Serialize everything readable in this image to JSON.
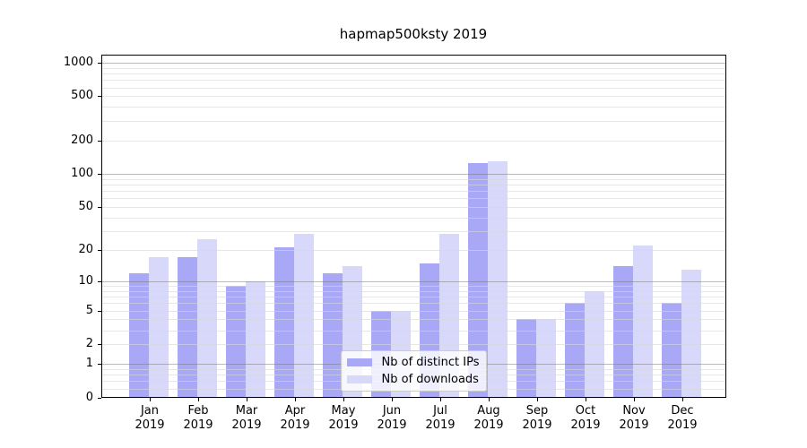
{
  "title": "hapmap500ksty 2019",
  "chart_data": {
    "type": "bar",
    "title": "hapmap500ksty 2019",
    "categories": [
      "Jan 2019",
      "Feb 2019",
      "Mar 2019",
      "Apr 2019",
      "May 2019",
      "Jun 2019",
      "Jul 2019",
      "Aug 2019",
      "Sep 2019",
      "Oct 2019",
      "Nov 2019",
      "Dec 2019"
    ],
    "series": [
      {
        "name": "Nb of distinct IPs",
        "color": "#a8a8f7",
        "values": [
          12,
          17,
          9,
          21,
          12,
          5,
          15,
          125,
          4,
          6,
          14,
          6
        ]
      },
      {
        "name": "Nb of downloads",
        "color": "#d8d8fa",
        "values": [
          17,
          25,
          10,
          28,
          14,
          5,
          28,
          130,
          4,
          8,
          22,
          13
        ]
      }
    ],
    "xlabel": "",
    "ylabel": "",
    "y_ticks": [
      0,
      1,
      2,
      5,
      10,
      20,
      50,
      100,
      200,
      500,
      1000
    ],
    "y_scale": "log-like (log10 of value+1), 0 at baseline",
    "ylim": [
      0,
      1160
    ],
    "grid": "major gridlines at 1,10,100,1000 and minor gridlines per decade, drawn on top of bars",
    "legend_position": "lower center"
  },
  "colors": {
    "background": "#ffffff",
    "axis": "#000000",
    "grid_major": "rgba(120,120,120,0.5)",
    "grid_minor": "rgba(215,215,215,0.6)",
    "legend_border": "#cccccc"
  }
}
